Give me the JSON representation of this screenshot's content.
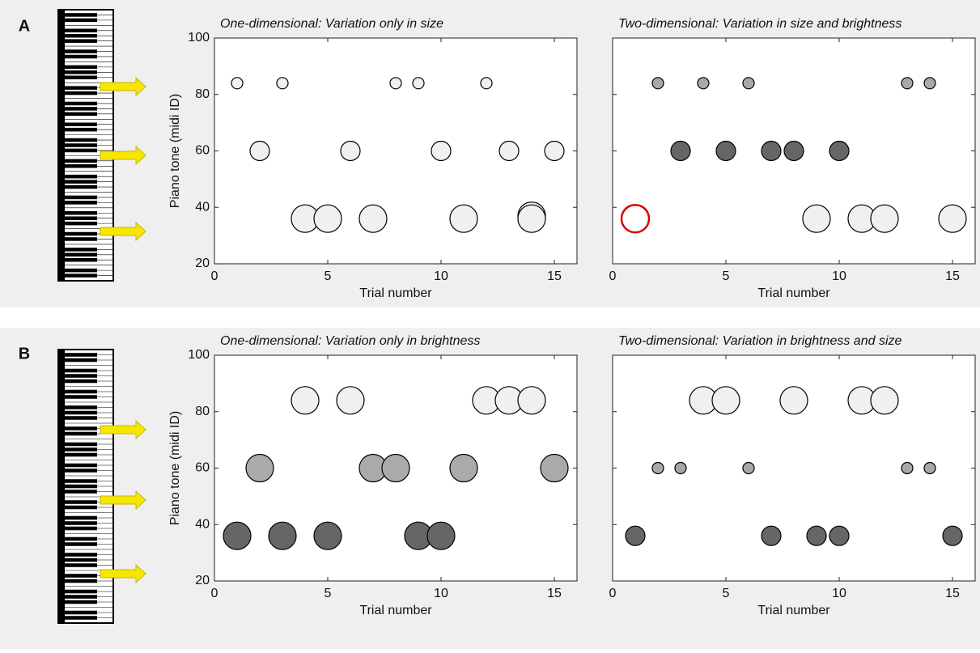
{
  "panel_labels": [
    "A",
    "B"
  ],
  "chart_data": [
    {
      "type": "scatter",
      "title": "One-dimensional: Variation only in size",
      "xlabel": "Trial number",
      "ylabel": "Piano tone (midi ID)",
      "xlim": [
        0,
        16
      ],
      "ylim": [
        20,
        100
      ],
      "xticks": [
        0,
        5,
        10,
        15
      ],
      "yticks": [
        20,
        40,
        60,
        80,
        100
      ],
      "ytick_labels": true,
      "series": [
        {
          "color": "#f0f0f0",
          "edgecolor": "#000000",
          "marker": "small",
          "x": [
            1,
            3,
            8,
            9,
            12
          ],
          "values": [
            84,
            84,
            84,
            84,
            84
          ]
        },
        {
          "color": "#f0f0f0",
          "edgecolor": "#000000",
          "marker": "medium",
          "x": [
            2,
            6,
            10,
            13,
            15
          ],
          "values": [
            60,
            60,
            60,
            60,
            60
          ]
        },
        {
          "color": "#f0f0f0",
          "edgecolor": "#000000",
          "marker": "large",
          "x": [
            4,
            5,
            7,
            11,
            14,
            14
          ],
          "values": [
            36,
            36,
            36,
            36,
            37,
            36
          ]
        }
      ]
    },
    {
      "type": "scatter",
      "title": "Two-dimensional: Variation in size and brightness",
      "xlabel": "Trial number",
      "xlim": [
        0,
        16
      ],
      "ylim": [
        20,
        100
      ],
      "xticks": [
        0,
        5,
        10,
        15
      ],
      "yticks": [
        20,
        40,
        60,
        80,
        100
      ],
      "ytick_labels": false,
      "series": [
        {
          "color": "#a8a8a8",
          "edgecolor": "#000000",
          "marker": "small",
          "x": [
            2,
            4,
            6,
            13,
            14
          ],
          "values": [
            84,
            84,
            84,
            84,
            84
          ]
        },
        {
          "color": "#666666",
          "edgecolor": "#000000",
          "marker": "medium",
          "x": [
            3,
            5,
            7,
            8,
            10
          ],
          "values": [
            60,
            60,
            60,
            60,
            60
          ]
        },
        {
          "color": "#ffffff",
          "edgecolor": "#e00000",
          "marker": "large",
          "x": [
            1
          ],
          "values": [
            36
          ]
        },
        {
          "color": "#f0f0f0",
          "edgecolor": "#000000",
          "marker": "large",
          "x": [
            9,
            11,
            12,
            15
          ],
          "values": [
            36,
            36,
            36,
            36
          ]
        }
      ]
    },
    {
      "type": "scatter",
      "title": "One-dimensional: Variation only in brightness",
      "xlabel": "Trial number",
      "ylabel": "Piano tone (midi ID)",
      "xlim": [
        0,
        16
      ],
      "ylim": [
        20,
        100
      ],
      "xticks": [
        0,
        5,
        10,
        15
      ],
      "yticks": [
        20,
        40,
        60,
        80,
        100
      ],
      "ytick_labels": true,
      "series": [
        {
          "color": "#f0f0f0",
          "edgecolor": "#000000",
          "marker": "large",
          "x": [
            4,
            6,
            12,
            13,
            14
          ],
          "values": [
            84,
            84,
            84,
            84,
            84
          ]
        },
        {
          "color": "#aaaaaa",
          "edgecolor": "#000000",
          "marker": "large",
          "x": [
            2,
            7,
            8,
            11,
            15
          ],
          "values": [
            60,
            60,
            60,
            60,
            60
          ]
        },
        {
          "color": "#666666",
          "edgecolor": "#000000",
          "marker": "large",
          "x": [
            1,
            3,
            5,
            9,
            10
          ],
          "values": [
            36,
            36,
            36,
            36,
            36
          ]
        }
      ]
    },
    {
      "type": "scatter",
      "title": "Two-dimensional: Variation in brightness and size",
      "xlabel": "Trial number",
      "xlim": [
        0,
        16
      ],
      "ylim": [
        20,
        100
      ],
      "xticks": [
        0,
        5,
        10,
        15
      ],
      "yticks": [
        20,
        40,
        60,
        80,
        100
      ],
      "ytick_labels": false,
      "series": [
        {
          "color": "#f0f0f0",
          "edgecolor": "#000000",
          "marker": "large",
          "x": [
            4,
            5,
            8,
            11,
            12
          ],
          "values": [
            84,
            84,
            84,
            84,
            84
          ]
        },
        {
          "color": "#a8a8a8",
          "edgecolor": "#000000",
          "marker": "small",
          "x": [
            2,
            3,
            6,
            13,
            14
          ],
          "values": [
            60,
            60,
            60,
            60,
            60
          ]
        },
        {
          "color": "#666666",
          "edgecolor": "#000000",
          "marker": "medium",
          "x": [
            1,
            7,
            9,
            10,
            15
          ],
          "values": [
            36,
            36,
            36,
            36,
            36
          ]
        }
      ]
    }
  ]
}
